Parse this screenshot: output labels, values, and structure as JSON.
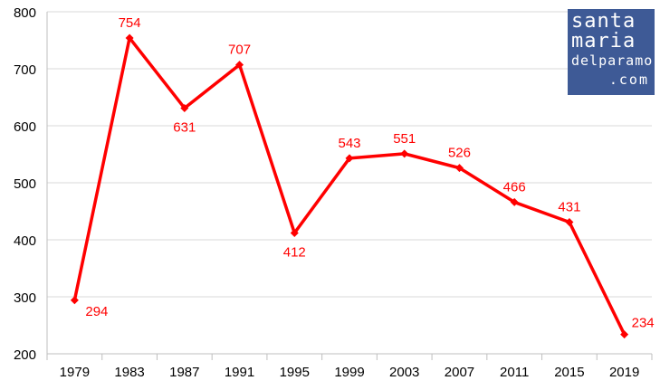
{
  "chart_data": {
    "type": "line",
    "title": "",
    "xlabel": "",
    "ylabel": "",
    "categories": [
      "1979",
      "1983",
      "1987",
      "1991",
      "1995",
      "1999",
      "2003",
      "2007",
      "2011",
      "2015",
      "2019"
    ],
    "series": [
      {
        "values": [
          294,
          754,
          631,
          707,
          412,
          543,
          551,
          526,
          466,
          431,
          234
        ],
        "color": "#ff0000"
      }
    ],
    "ylim": [
      200,
      800
    ],
    "yticks": [
      200,
      300,
      400,
      500,
      600,
      700,
      800
    ],
    "grid": true,
    "legend": "none",
    "data_labels": true
  },
  "logo": {
    "line1": "santa",
    "line2": "maria",
    "line3": "delparamo",
    "line4": ".com",
    "color": "#3e5a96"
  }
}
